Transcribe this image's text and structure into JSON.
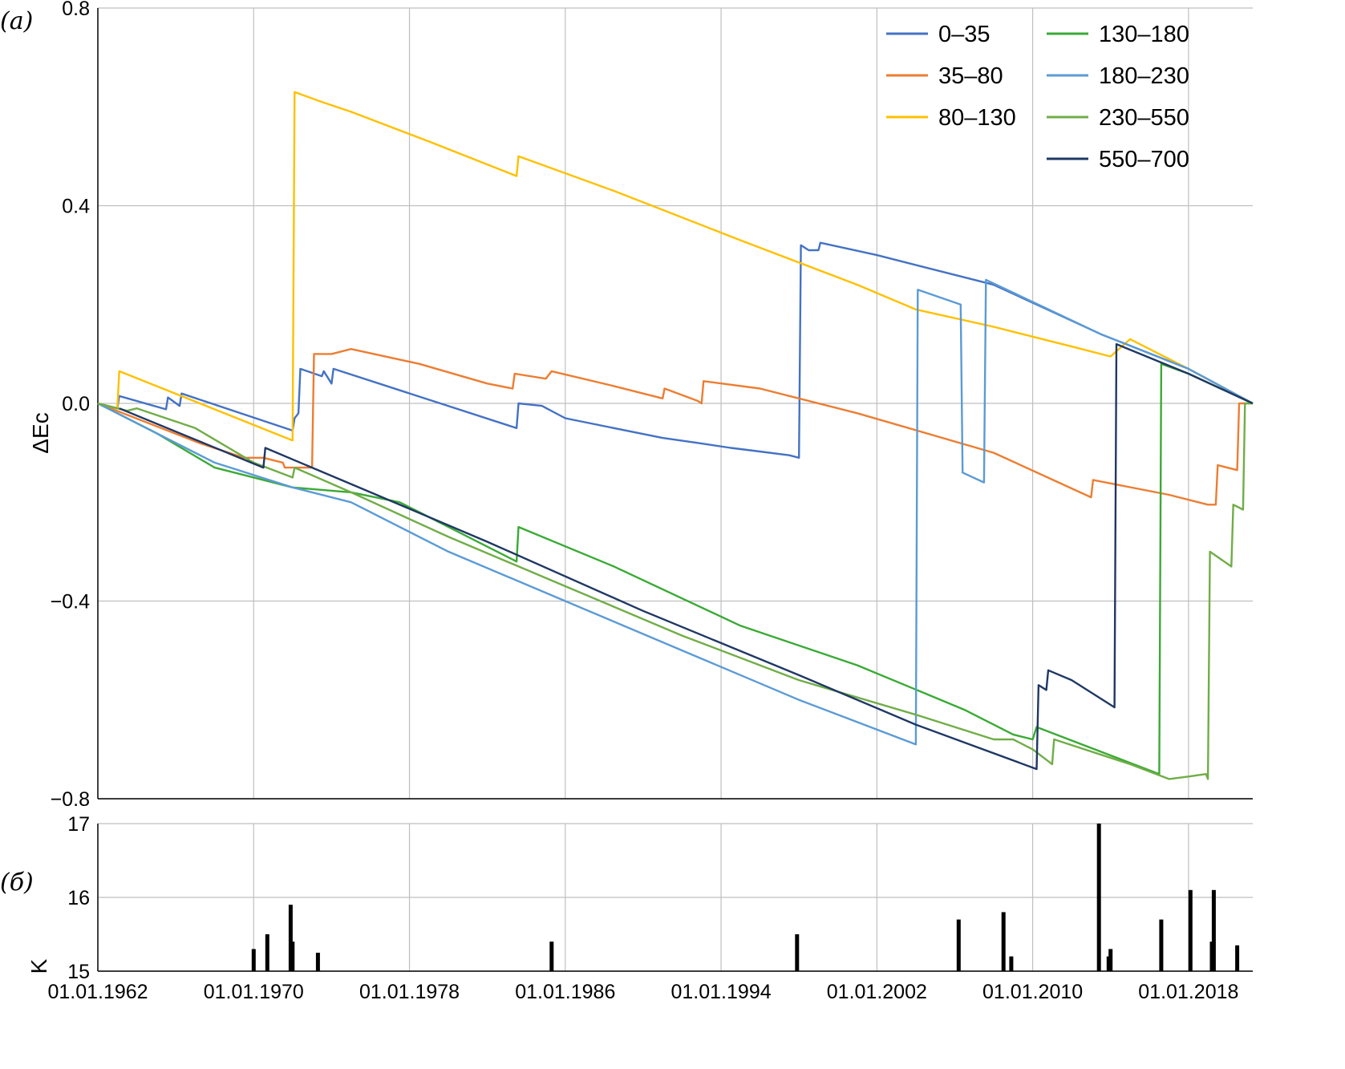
{
  "panel_a_label": "(а)",
  "panel_b_label": "(б)",
  "chart_data": [
    {
      "type": "line",
      "panel": "а",
      "ylabel": "ΔEc",
      "xlabel": "",
      "ylim": [
        -0.8,
        0.8
      ],
      "yticks": [
        0.8,
        0.4,
        0.0,
        -0.4,
        -0.8
      ],
      "ytick_labels": [
        "0.8",
        "0.4",
        "0.0",
        "−0.4",
        "−0.8"
      ],
      "xlim": [
        1962.0,
        2021.3
      ],
      "xticks": [
        1962,
        1970,
        1978,
        1986,
        1994,
        2002,
        2010,
        2018
      ],
      "grid": true,
      "legend_position": "top-right",
      "series": [
        {
          "name": "0–35",
          "color": "#4472C4",
          "points": [
            [
              1962.0,
              0.0
            ],
            [
              1963.0,
              -0.01
            ],
            [
              1963.1,
              0.015
            ],
            [
              1965.5,
              -0.012
            ],
            [
              1965.6,
              0.012
            ],
            [
              1966.2,
              -0.005
            ],
            [
              1966.3,
              0.02
            ],
            [
              1972.0,
              -0.055
            ],
            [
              1972.1,
              -0.03
            ],
            [
              1972.3,
              -0.02
            ],
            [
              1972.4,
              0.07
            ],
            [
              1973.5,
              0.055
            ],
            [
              1973.6,
              0.065
            ],
            [
              1974.0,
              0.04
            ],
            [
              1974.1,
              0.07
            ],
            [
              1983.5,
              -0.05
            ],
            [
              1983.6,
              0.0
            ],
            [
              1984.8,
              -0.005
            ],
            [
              1986.0,
              -0.03
            ],
            [
              1991.0,
              -0.07
            ],
            [
              1992.8,
              -0.08
            ],
            [
              1994.5,
              -0.09
            ],
            [
              1995.5,
              -0.095
            ],
            [
              1997.5,
              -0.105
            ],
            [
              1998.0,
              -0.11
            ],
            [
              1998.1,
              0.32
            ],
            [
              1998.5,
              0.31
            ],
            [
              1999.0,
              0.31
            ],
            [
              1999.1,
              0.325
            ],
            [
              2002.0,
              0.3
            ],
            [
              2008.0,
              0.24
            ],
            [
              2013.5,
              0.14
            ],
            [
              2018.0,
              0.07
            ],
            [
              2021.3,
              0.0
            ]
          ]
        },
        {
          "name": "35–80",
          "color": "#ED7D31",
          "points": [
            [
              1962.0,
              0.0
            ],
            [
              1967.2,
              -0.08
            ],
            [
              1969.5,
              -0.11
            ],
            [
              1970.5,
              -0.11
            ],
            [
              1971.5,
              -0.12
            ],
            [
              1971.6,
              -0.13
            ],
            [
              1972.8,
              -0.13
            ],
            [
              1973.0,
              -0.13
            ],
            [
              1973.1,
              0.1
            ],
            [
              1974.0,
              0.1
            ],
            [
              1975.0,
              0.11
            ],
            [
              1978.5,
              0.08
            ],
            [
              1982.0,
              0.04
            ],
            [
              1983.3,
              0.03
            ],
            [
              1983.4,
              0.06
            ],
            [
              1985.0,
              0.05
            ],
            [
              1985.3,
              0.065
            ],
            [
              1988.5,
              0.035
            ],
            [
              1990.0,
              0.02
            ],
            [
              1991.0,
              0.01
            ],
            [
              1991.1,
              0.03
            ],
            [
              1992.8,
              0.005
            ],
            [
              1993.0,
              0.0
            ],
            [
              1993.1,
              0.045
            ],
            [
              1996.0,
              0.03
            ],
            [
              2001.0,
              -0.02
            ],
            [
              2008.0,
              -0.1
            ],
            [
              2013.0,
              -0.19
            ],
            [
              2013.1,
              -0.155
            ],
            [
              2017.0,
              -0.185
            ],
            [
              2019.0,
              -0.205
            ],
            [
              2019.4,
              -0.205
            ],
            [
              2019.5,
              -0.125
            ],
            [
              2020.5,
              -0.135
            ],
            [
              2020.6,
              0.0
            ],
            [
              2021.3,
              0.0
            ]
          ]
        },
        {
          "name": "80–130",
          "color": "#FFC000",
          "points": [
            [
              1962.0,
              0.0
            ],
            [
              1963.0,
              -0.01
            ],
            [
              1963.1,
              0.065
            ],
            [
              1972.0,
              -0.075
            ],
            [
              1972.1,
              0.63
            ],
            [
              1973.5,
              0.61
            ],
            [
              1975.0,
              0.59
            ],
            [
              1979.0,
              0.53
            ],
            [
              1983.5,
              0.46
            ],
            [
              1983.6,
              0.5
            ],
            [
              1988.5,
              0.43
            ],
            [
              1995.0,
              0.33
            ],
            [
              2001.0,
              0.24
            ],
            [
              2004.0,
              0.19
            ],
            [
              2008.0,
              0.155
            ],
            [
              2010.0,
              0.135
            ],
            [
              2012.0,
              0.115
            ],
            [
              2014.0,
              0.095
            ],
            [
              2015.0,
              0.13
            ],
            [
              2018.0,
              0.07
            ],
            [
              2021.3,
              0.0
            ]
          ]
        },
        {
          "name": "130–180",
          "color": "#3AAA35",
          "points": [
            [
              1962.0,
              0.0
            ],
            [
              1965.0,
              -0.06
            ],
            [
              1968.0,
              -0.13
            ],
            [
              1972.0,
              -0.17
            ],
            [
              1975.0,
              -0.18
            ],
            [
              1977.5,
              -0.2
            ],
            [
              1983.5,
              -0.32
            ],
            [
              1983.6,
              -0.25
            ],
            [
              1988.5,
              -0.33
            ],
            [
              1995.0,
              -0.45
            ],
            [
              2001.0,
              -0.53
            ],
            [
              2006.5,
              -0.62
            ],
            [
              2009.0,
              -0.67
            ],
            [
              2010.0,
              -0.68
            ],
            [
              2010.2,
              -0.655
            ],
            [
              2016.5,
              -0.75
            ],
            [
              2016.6,
              0.08
            ],
            [
              2018.0,
              0.06
            ],
            [
              2021.3,
              0.0
            ]
          ]
        },
        {
          "name": "180–230",
          "color": "#5B9BD5",
          "points": [
            [
              1962.0,
              0.0
            ],
            [
              1965.0,
              -0.06
            ],
            [
              1968.0,
              -0.12
            ],
            [
              1972.0,
              -0.17
            ],
            [
              1975.0,
              -0.2
            ],
            [
              1980.0,
              -0.3
            ],
            [
              1986.0,
              -0.4
            ],
            [
              1992.0,
              -0.5
            ],
            [
              1998.0,
              -0.6
            ],
            [
              2004.0,
              -0.69
            ],
            [
              2004.1,
              0.23
            ],
            [
              2006.3,
              0.2
            ],
            [
              2006.4,
              -0.14
            ],
            [
              2007.5,
              -0.16
            ],
            [
              2007.6,
              0.25
            ],
            [
              2013.5,
              0.14
            ],
            [
              2018.0,
              0.07
            ],
            [
              2021.3,
              0.0
            ]
          ]
        },
        {
          "name": "230–550",
          "color": "#70AD47",
          "points": [
            [
              1962.0,
              0.0
            ],
            [
              1963.5,
              -0.015
            ],
            [
              1964.0,
              -0.01
            ],
            [
              1967.0,
              -0.05
            ],
            [
              1970.0,
              -0.12
            ],
            [
              1972.0,
              -0.15
            ],
            [
              1972.1,
              -0.13
            ],
            [
              1975.0,
              -0.18
            ],
            [
              1980.0,
              -0.27
            ],
            [
              1986.0,
              -0.37
            ],
            [
              1992.0,
              -0.47
            ],
            [
              1998.0,
              -0.56
            ],
            [
              2004.0,
              -0.63
            ],
            [
              2008.0,
              -0.68
            ],
            [
              2009.0,
              -0.68
            ],
            [
              2010.0,
              -0.7
            ],
            [
              2011.0,
              -0.73
            ],
            [
              2011.1,
              -0.68
            ],
            [
              2015.0,
              -0.73
            ],
            [
              2017.0,
              -0.76
            ],
            [
              2018.0,
              -0.755
            ],
            [
              2018.9,
              -0.75
            ],
            [
              2019.0,
              -0.76
            ],
            [
              2019.1,
              -0.3
            ],
            [
              2020.2,
              -0.33
            ],
            [
              2020.3,
              -0.205
            ],
            [
              2020.8,
              -0.215
            ],
            [
              2020.9,
              0.0
            ],
            [
              2021.3,
              0.0
            ]
          ]
        },
        {
          "name": "550–700",
          "color": "#1F3864",
          "points": [
            [
              1963.1,
              -0.01
            ],
            [
              1970.5,
              -0.13
            ],
            [
              1970.6,
              -0.09
            ],
            [
              1976.0,
              -0.18
            ],
            [
              1982.0,
              -0.28
            ],
            [
              1990.0,
              -0.42
            ],
            [
              1998.0,
              -0.55
            ],
            [
              2004.0,
              -0.65
            ],
            [
              2010.2,
              -0.74
            ],
            [
              2010.3,
              -0.57
            ],
            [
              2010.7,
              -0.58
            ],
            [
              2010.8,
              -0.54
            ],
            [
              2012.0,
              -0.56
            ],
            [
              2014.2,
              -0.615
            ],
            [
              2014.3,
              0.12
            ],
            [
              2018.0,
              0.06
            ],
            [
              2021.3,
              0.0
            ]
          ]
        }
      ]
    },
    {
      "type": "bar",
      "panel": "б",
      "ylabel": "K",
      "xlabel": "",
      "ylim": [
        15,
        17
      ],
      "yticks": [
        17,
        16,
        15
      ],
      "ytick_labels": [
        "17",
        "16",
        "15"
      ],
      "xlim": [
        1962.0,
        2021.3
      ],
      "xticks": [
        1962,
        1970,
        1978,
        1986,
        1994,
        2002,
        2010,
        2018
      ],
      "xtick_labels": [
        "01.01.1962",
        "01.01.1970",
        "01.01.1978",
        "01.01.1986",
        "01.01.1994",
        "01.01.2002",
        "01.01.2010",
        "01.01.2018"
      ],
      "grid": true,
      "bar_color": "#000000",
      "events": [
        {
          "date": 1970.0,
          "K": 15.3
        },
        {
          "date": 1970.7,
          "K": 15.5
        },
        {
          "date": 1971.9,
          "K": 15.9
        },
        {
          "date": 1972.0,
          "K": 15.4
        },
        {
          "date": 1973.3,
          "K": 15.25
        },
        {
          "date": 1985.3,
          "K": 15.4
        },
        {
          "date": 1997.9,
          "K": 15.5
        },
        {
          "date": 2006.2,
          "K": 15.7
        },
        {
          "date": 2008.5,
          "K": 15.8
        },
        {
          "date": 2008.9,
          "K": 15.2
        },
        {
          "date": 2013.4,
          "K": 17.0
        },
        {
          "date": 2013.9,
          "K": 15.2
        },
        {
          "date": 2014.0,
          "K": 15.3
        },
        {
          "date": 2016.6,
          "K": 15.7
        },
        {
          "date": 2018.1,
          "K": 16.1
        },
        {
          "date": 2019.2,
          "K": 15.4
        },
        {
          "date": 2019.3,
          "K": 16.1
        },
        {
          "date": 2020.5,
          "K": 15.35
        }
      ]
    }
  ]
}
